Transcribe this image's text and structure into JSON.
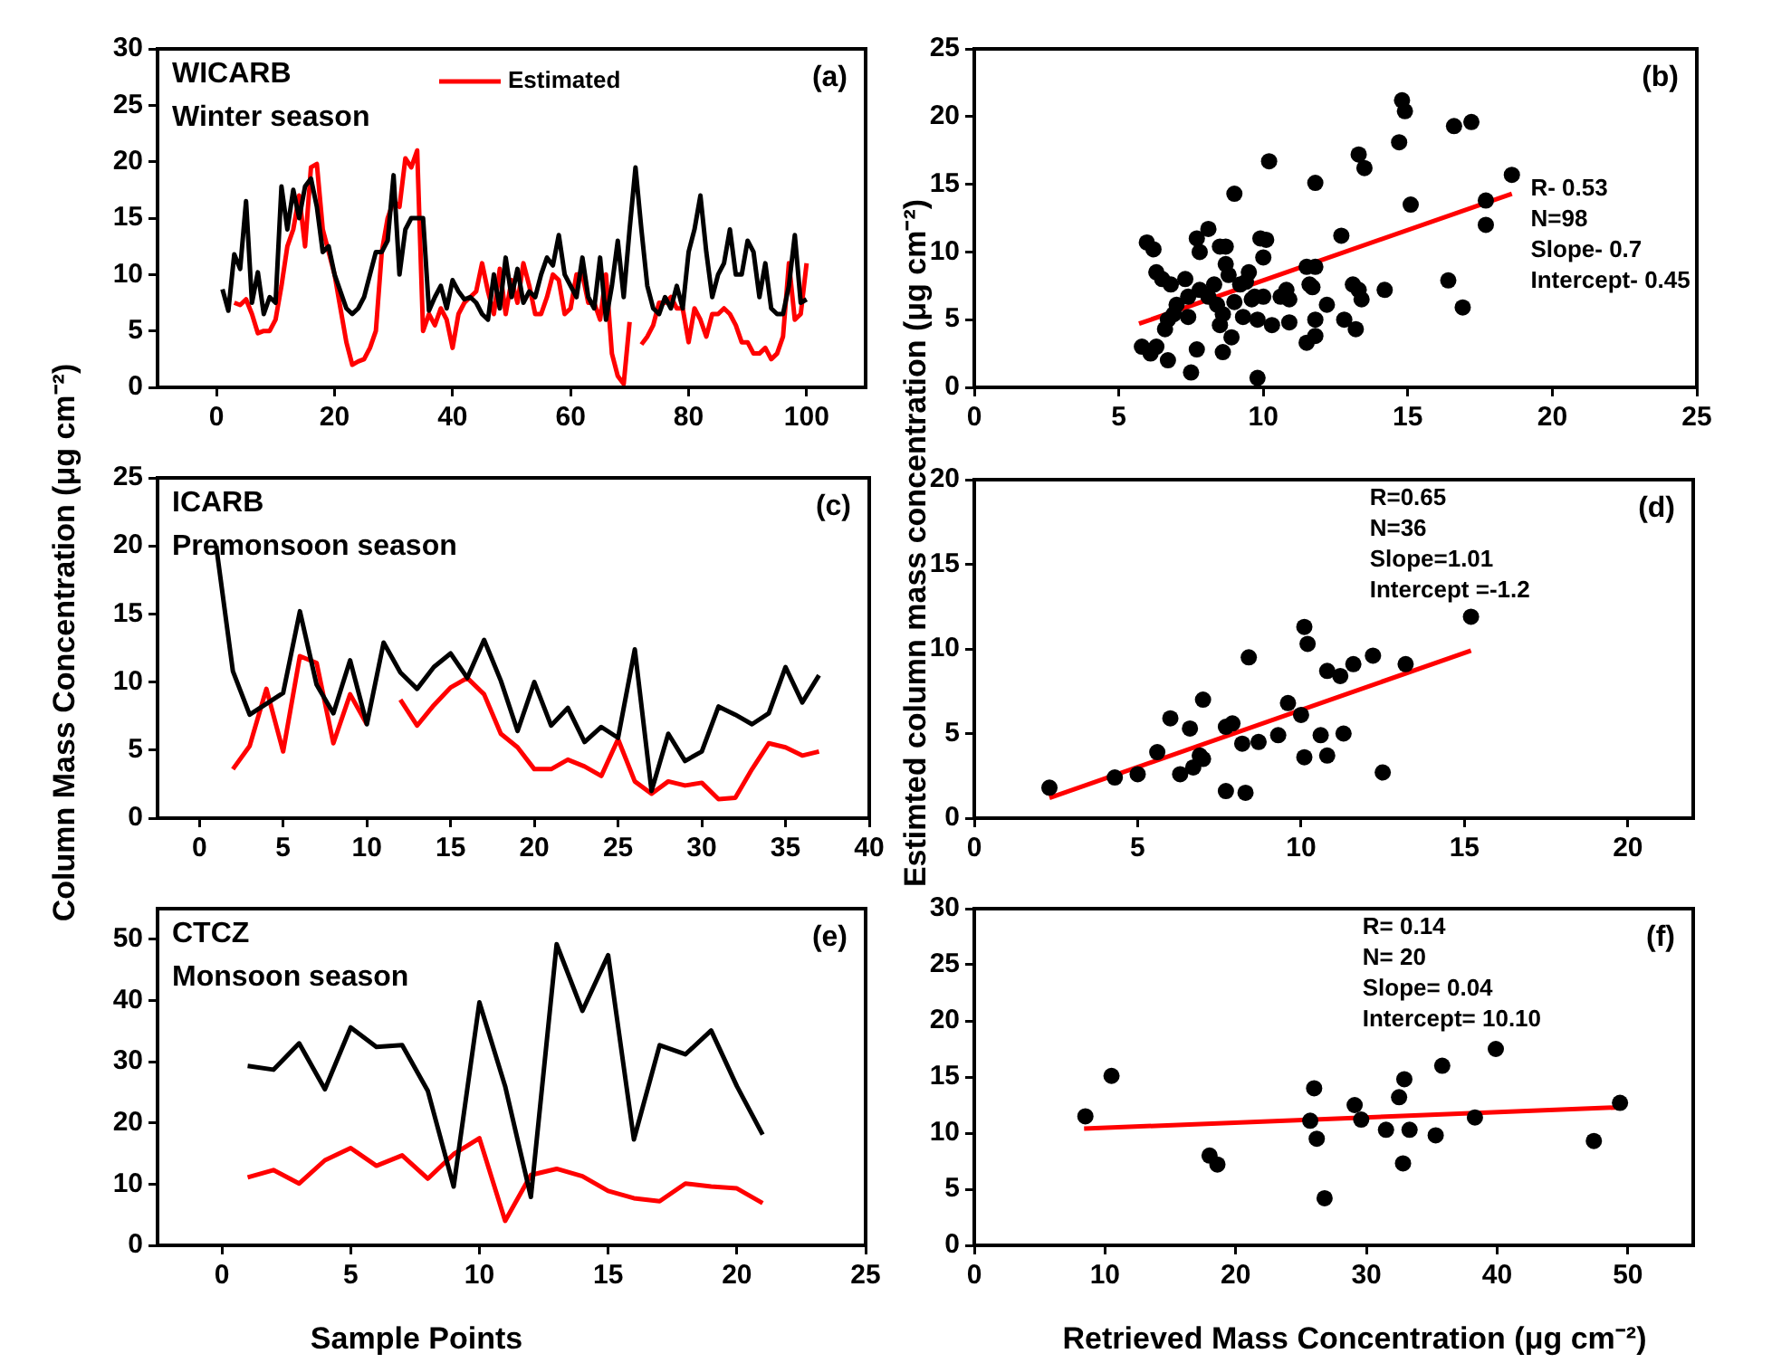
{
  "chart_data": [
    {
      "type": "line",
      "title": "WICARB",
      "subtitle": "Winter season",
      "annotations": [
        "(a)"
      ],
      "legend": "top",
      "xlim": [
        -10,
        110
      ],
      "xticks": [
        0,
        20,
        40,
        60,
        80,
        100
      ],
      "ylim": [
        0,
        30
      ],
      "yticks": [
        0,
        5,
        10,
        15,
        20,
        25,
        30
      ],
      "x": [
        1,
        2,
        3,
        4,
        5,
        6,
        7,
        8,
        9,
        10,
        11,
        12,
        13,
        14,
        15,
        16,
        17,
        18,
        19,
        20,
        21,
        22,
        23,
        24,
        25,
        26,
        27,
        28,
        29,
        30,
        31,
        32,
        33,
        34,
        35,
        36,
        37,
        38,
        39,
        40,
        41,
        42,
        43,
        44,
        45,
        46,
        47,
        48,
        49,
        50,
        51,
        52,
        53,
        54,
        55,
        56,
        57,
        58,
        59,
        60,
        61,
        62,
        63,
        64,
        65,
        66,
        67,
        68,
        69,
        70,
        71,
        72,
        73,
        74,
        75,
        76,
        77,
        78,
        79,
        80,
        81,
        82,
        83,
        84,
        85,
        86,
        87,
        88,
        89,
        90,
        91,
        92,
        93,
        94,
        95,
        96,
        97,
        98,
        99,
        100
      ],
      "series": [
        {
          "color": "#000000",
          "marker": "none",
          "values": [
            8.7,
            6.8,
            11.8,
            10.5,
            16.5,
            7.5,
            10.2,
            6.5,
            8,
            7.5,
            17.8,
            14,
            17.5,
            15,
            17.8,
            18.5,
            16,
            12,
            12.5,
            10,
            8.5,
            7,
            6.5,
            7,
            8,
            10,
            12,
            12,
            13,
            18.8,
            10,
            14,
            15,
            15,
            15,
            6.8,
            8,
            9,
            7,
            9.5,
            8.5,
            7.8,
            8,
            7.5,
            6.5,
            6,
            10,
            7,
            11.5,
            8,
            10.5,
            7.5,
            8.5,
            8,
            10,
            11.5,
            10.8,
            13.5,
            10,
            9,
            8,
            11.5,
            8,
            7,
            11.5,
            6,
            9,
            13,
            8,
            14,
            19.5,
            14,
            9,
            7,
            6.5,
            8,
            7,
            9,
            7,
            12,
            14,
            17,
            12,
            8,
            10,
            11,
            14,
            10,
            10,
            13,
            12,
            8,
            11,
            7,
            6.5,
            6.5,
            9,
            13.5,
            7.5,
            7.8
          ]
        },
        {
          "name": "Estimated",
          "color": "#ff0000",
          "marker": "none",
          "values": [
            null,
            null,
            7.5,
            7.3,
            7.8,
            6.5,
            4.8,
            5,
            5,
            6,
            9,
            12.5,
            14,
            17,
            12.5,
            19.5,
            19.8,
            14,
            12,
            10,
            7,
            4,
            2,
            2.3,
            2.5,
            3.5,
            5,
            12,
            15,
            16.5,
            16,
            20.3,
            19.5,
            21,
            5,
            6.5,
            5.5,
            7,
            6,
            3.5,
            6.5,
            7.5,
            8,
            8.5,
            11,
            8.5,
            6.5,
            10.5,
            6.5,
            9.5,
            7.5,
            11,
            9,
            6.5,
            6.5,
            8,
            10,
            9.5,
            6.5,
            7,
            10,
            10,
            7.5,
            7.5,
            6,
            10,
            3,
            1,
            0.3,
            5.8,
            null,
            3.8,
            4.5,
            5.5,
            7.5,
            7.5,
            8,
            7,
            7,
            4,
            7,
            6,
            4.5,
            6.5,
            6.5,
            7,
            6.5,
            5.5,
            4,
            4,
            3,
            3,
            3.5,
            2.5,
            3,
            4.5,
            11,
            6,
            6.5,
            11
          ]
        }
      ]
    },
    {
      "type": "scatter",
      "annotations": [
        "(b)",
        "R- 0.53",
        "N=98",
        "Slope- 0.7",
        "Intercept- 0.45"
      ],
      "xlim": [
        0,
        25
      ],
      "xticks": [
        0,
        5,
        10,
        15,
        20,
        25
      ],
      "ylim": [
        0,
        25
      ],
      "yticks": [
        0,
        5,
        10,
        15,
        20,
        25
      ],
      "series": [
        {
          "type": "scatter",
          "color": "#000000",
          "marker": "circle",
          "x": [
            5.97,
            6.2,
            5.8,
            6.1,
            6.3,
            6.7,
            6.3,
            6.5,
            6.8,
            6.6,
            6.7,
            6.9,
            7.0,
            7.3,
            7.4,
            7.4,
            7.5,
            7.7,
            7.7,
            7.8,
            8.1,
            7.8,
            8.1,
            8.3,
            8.4,
            8.5,
            8.6,
            8.6,
            8.5,
            8.7,
            8.7,
            8.8,
            9.0,
            8.9,
            9.0,
            9.2,
            9.3,
            9.4,
            9.5,
            9.6,
            9.7,
            9.8,
            9.9,
            10.1,
            10.0,
            10.0,
            10.3,
            9.8,
            10.2,
            10.6,
            10.8,
            10.9,
            10.9,
            11.5,
            11.6,
            11.8,
            11.7,
            11.8,
            11.5,
            11.8,
            11.8,
            12.2,
            12.7,
            12.8,
            13.1,
            13.2,
            13.3,
            13.4,
            13.3,
            13.5,
            14.2,
            14.7,
            14.8,
            14.9,
            15.1,
            16.4,
            16.6,
            16.9,
            17.2,
            17.7,
            17.7,
            18.6
          ],
          "values": [
            10.7,
            10.2,
            3.0,
            2.5,
            3.0,
            2.0,
            8.5,
            8.0,
            7.6,
            4.3,
            5.0,
            5.4,
            6.1,
            8.0,
            6.7,
            5.2,
            1.1,
            2.8,
            11.0,
            10.0,
            11.7,
            7.2,
            6.7,
            7.6,
            6.1,
            4.6,
            5.4,
            2.6,
            10.4,
            10.4,
            9.1,
            8.3,
            14.3,
            3.7,
            6.3,
            7.6,
            5.2,
            7.8,
            8.5,
            6.5,
            6.7,
            5.0,
            11.0,
            10.9,
            9.6,
            6.7,
            4.6,
            0.7,
            16.7,
            6.7,
            7.2,
            6.5,
            4.8,
            8.9,
            7.6,
            8.9,
            7.4,
            5.0,
            3.3,
            3.8,
            15.1,
            6.1,
            11.2,
            5.0,
            7.6,
            4.3,
            7.2,
            6.5,
            17.2,
            16.2,
            7.2,
            18.1,
            21.2,
            20.4,
            13.5,
            7.9,
            19.3,
            5.9,
            19.6,
            13.8,
            12.0,
            15.7
          ]
        },
        {
          "type": "line",
          "color": "#ff0000",
          "marker": "none",
          "x": [
            5.7,
            18.6
          ],
          "values": [
            4.7,
            14.3
          ]
        }
      ]
    },
    {
      "type": "line",
      "title": "ICARB",
      "subtitle": "Premonsoon season",
      "annotations": [
        "(c)"
      ],
      "ylabel": "Column Mass Concentration (μg cm⁻²)",
      "xlim": [
        -2.5,
        40
      ],
      "xticks": [
        0,
        5,
        10,
        15,
        20,
        25,
        30,
        35,
        40
      ],
      "ylim": [
        0,
        25
      ],
      "yticks": [
        0,
        5,
        10,
        15,
        20,
        25
      ],
      "x": [
        1,
        2,
        3,
        4,
        5,
        6,
        7,
        8,
        9,
        10,
        11,
        12,
        13,
        14,
        15,
        16,
        17,
        18,
        19,
        20,
        21,
        22,
        23,
        24,
        25,
        26,
        27,
        28,
        29,
        30,
        31,
        32,
        33,
        34,
        35,
        36,
        37
      ],
      "series": [
        {
          "color": "#000000",
          "marker": "none",
          "values": [
            20.0,
            10.8,
            7.6,
            8.4,
            9.2,
            15.2,
            9.8,
            7.7,
            11.6,
            6.9,
            12.9,
            10.7,
            9.5,
            11.1,
            12.1,
            10.3,
            13.1,
            10.1,
            6.4,
            10.0,
            6.8,
            8.1,
            5.6,
            6.7,
            5.9,
            12.4,
            2.0,
            6.2,
            4.2,
            4.9,
            8.2,
            7.6,
            6.9,
            7.7,
            11.1,
            8.5,
            10.5
          ]
        },
        {
          "color": "#ff0000",
          "marker": "none",
          "values": [
            null,
            3.6,
            5.3,
            9.5,
            4.9,
            11.9,
            11.4,
            5.5,
            9.1,
            6.9,
            null,
            8.7,
            6.8,
            8.3,
            9.6,
            10.3,
            9.1,
            6.2,
            5.2,
            3.6,
            3.6,
            4.3,
            3.8,
            3.1,
            5.8,
            2.7,
            1.8,
            2.7,
            2.4,
            2.6,
            1.4,
            1.5,
            3.6,
            5.5,
            5.2,
            4.6,
            4.9
          ]
        }
      ]
    },
    {
      "type": "scatter",
      "annotations": [
        "(d)",
        "R=0.65",
        "N=36",
        "Slope=1.01",
        "Intercept =-1.2"
      ],
      "ylabel": "Estimted column mass concentration (μg cm⁻²)",
      "xlim": [
        0,
        22
      ],
      "xticks": [
        0,
        5,
        10,
        15,
        20
      ],
      "ylim": [
        0,
        20
      ],
      "yticks": [
        0,
        5,
        10,
        15,
        20
      ],
      "series": [
        {
          "type": "scatter",
          "color": "#000000",
          "marker": "circle",
          "x": [
            2.3,
            4.3,
            5.0,
            5.6,
            6.0,
            6.3,
            6.6,
            6.7,
            6.9,
            7.0,
            7.0,
            7.7,
            7.7,
            7.9,
            8.2,
            8.3,
            8.4,
            8.7,
            9.3,
            9.6,
            10.0,
            10.1,
            10.1,
            10.2,
            10.6,
            10.8,
            10.8,
            11.2,
            11.3,
            11.6,
            12.2,
            12.5,
            13.2,
            15.2
          ],
          "values": [
            1.8,
            2.4,
            2.6,
            3.9,
            5.9,
            2.6,
            5.3,
            3.0,
            3.7,
            3.5,
            7.0,
            1.6,
            5.4,
            5.6,
            4.4,
            1.5,
            9.5,
            4.5,
            4.9,
            6.8,
            6.1,
            3.6,
            11.3,
            10.3,
            4.9,
            3.7,
            8.7,
            8.4,
            5.0,
            9.1,
            9.6,
            2.7,
            9.1,
            11.9
          ]
        },
        {
          "type": "line",
          "color": "#ff0000",
          "marker": "none",
          "x": [
            2.3,
            15.2
          ],
          "values": [
            1.2,
            9.9
          ]
        }
      ]
    },
    {
      "type": "line",
      "title": "CTCZ",
      "subtitle": "Monsoon season",
      "annotations": [
        "(e)"
      ],
      "xlabel": "Sample Points",
      "xlim": [
        -2.5,
        25
      ],
      "xticks": [
        0,
        5,
        10,
        15,
        20,
        25
      ],
      "ylim": [
        0,
        55
      ],
      "yticks": [
        0,
        10,
        20,
        30,
        40,
        50
      ],
      "x": [
        1,
        2,
        3,
        4,
        5,
        6,
        7,
        8,
        9,
        10,
        11,
        12,
        13,
        14,
        15,
        16,
        17,
        18,
        19,
        20,
        21
      ],
      "series": [
        {
          "color": "#000000",
          "marker": "none",
          "values": [
            29.3,
            28.7,
            33.0,
            25.5,
            35.6,
            32.4,
            32.7,
            25.2,
            9.6,
            39.7,
            26.0,
            7.9,
            49.2,
            38.3,
            47.4,
            17.3,
            32.7,
            31.2,
            35.1,
            26.0,
            18.1
          ]
        },
        {
          "color": "#ff0000",
          "marker": "none",
          "values": [
            11.1,
            12.3,
            10.1,
            13.9,
            15.9,
            13.0,
            14.7,
            10.9,
            14.9,
            17.5,
            4.0,
            11.5,
            12.5,
            11.3,
            8.9,
            7.7,
            7.2,
            10.1,
            9.6,
            9.3,
            6.9
          ]
        }
      ]
    },
    {
      "type": "scatter",
      "annotations": [
        "(f)",
        "R= 0.14",
        "N= 20",
        "Slope= 0.04",
        "Intercept= 10.10"
      ],
      "xlabel": "Retrieved Mass Concentration (μg cm⁻²)",
      "xlim": [
        0,
        55
      ],
      "xticks": [
        0,
        10,
        20,
        30,
        40,
        50
      ],
      "ylim": [
        0,
        30
      ],
      "yticks": [
        0,
        5,
        10,
        15,
        20,
        25,
        30
      ],
      "series": [
        {
          "type": "scatter",
          "color": "#000000",
          "marker": "circle",
          "x": [
            8.5,
            10.5,
            18.0,
            18.6,
            26.0,
            25.7,
            26.2,
            26.8,
            29.1,
            29.6,
            31.5,
            32.5,
            32.9,
            32.8,
            33.3,
            35.3,
            35.8,
            38.3,
            39.9,
            47.4,
            49.4
          ],
          "values": [
            11.5,
            15.1,
            8.0,
            7.2,
            14.0,
            11.1,
            9.5,
            4.2,
            12.5,
            11.2,
            10.3,
            13.2,
            14.8,
            7.3,
            10.3,
            9.8,
            16.0,
            11.4,
            17.5,
            9.3,
            12.7
          ]
        },
        {
          "type": "line",
          "color": "#ff0000",
          "marker": "none",
          "x": [
            8.4,
            49.4
          ],
          "values": [
            10.4,
            12.3
          ]
        }
      ]
    }
  ]
}
